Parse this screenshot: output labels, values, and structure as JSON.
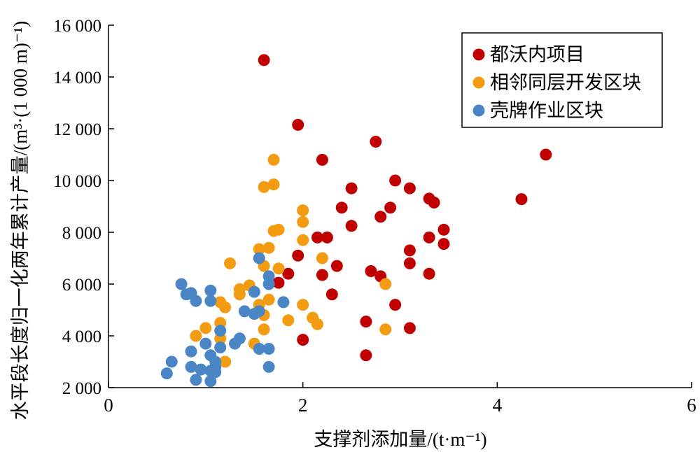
{
  "chart_data": {
    "type": "scatter",
    "xlabel": "支撑剂添加量/(t·m⁻¹)",
    "ylabel": "水平段长度归一化两年累计产量/(m³·(1 000 m)⁻¹)",
    "xlim": [
      0,
      6
    ],
    "ylim": [
      2000,
      16000
    ],
    "x_ticks": [
      "0",
      "2",
      "4",
      "6"
    ],
    "y_ticks": [
      "2 000",
      "4 000",
      "6 000",
      "8 000",
      "10 000",
      "12 000",
      "14 000",
      "16 000"
    ],
    "grid": false,
    "legend_position": "top-right",
    "series": [
      {
        "name": "都沃内项目",
        "color": "#c00000",
        "points": [
          [
            1.6,
            14650
          ],
          [
            1.95,
            12150
          ],
          [
            2.75,
            11500
          ],
          [
            2.2,
            10800
          ],
          [
            4.5,
            11000
          ],
          [
            2.95,
            10000
          ],
          [
            3.1,
            9700
          ],
          [
            2.5,
            9700
          ],
          [
            4.25,
            9280
          ],
          [
            3.3,
            9300
          ],
          [
            3.35,
            9150
          ],
          [
            2.4,
            8950
          ],
          [
            2.9,
            8950
          ],
          [
            2.5,
            8250
          ],
          [
            2.8,
            8600
          ],
          [
            3.45,
            8100
          ],
          [
            2.15,
            7800
          ],
          [
            2.25,
            7800
          ],
          [
            3.3,
            7800
          ],
          [
            3.45,
            7550
          ],
          [
            3.1,
            7300
          ],
          [
            1.95,
            7100
          ],
          [
            3.1,
            6800
          ],
          [
            2.35,
            6700
          ],
          [
            2.7,
            6500
          ],
          [
            2.8,
            6300
          ],
          [
            2.2,
            6350
          ],
          [
            3.3,
            6400
          ],
          [
            1.85,
            6400
          ],
          [
            1.75,
            6050
          ],
          [
            2.3,
            5600
          ],
          [
            2.95,
            5200
          ],
          [
            2.65,
            4550
          ],
          [
            3.1,
            4300
          ],
          [
            2.0,
            3850
          ],
          [
            2.65,
            3250
          ]
        ]
      },
      {
        "name": "相邻同层开发区块",
        "color": "#f39c12",
        "points": [
          [
            1.7,
            10800
          ],
          [
            1.6,
            9750
          ],
          [
            1.7,
            9850
          ],
          [
            2.0,
            8850
          ],
          [
            2.0,
            8400
          ],
          [
            1.7,
            8050
          ],
          [
            1.75,
            8100
          ],
          [
            2.0,
            7700
          ],
          [
            1.55,
            7350
          ],
          [
            1.65,
            7400
          ],
          [
            1.25,
            6800
          ],
          [
            1.6,
            6700
          ],
          [
            2.2,
            7000
          ],
          [
            1.75,
            6600
          ],
          [
            2.85,
            6000
          ],
          [
            1.45,
            5950
          ],
          [
            1.35,
            5800
          ],
          [
            1.35,
            5600
          ],
          [
            1.2,
            5100
          ],
          [
            1.55,
            5200
          ],
          [
            1.65,
            5400
          ],
          [
            2.0,
            5200
          ],
          [
            1.15,
            5300
          ],
          [
            1.6,
            4800
          ],
          [
            1.85,
            4600
          ],
          [
            2.1,
            4700
          ],
          [
            2.15,
            4450
          ],
          [
            1.15,
            4500
          ],
          [
            1.6,
            4250
          ],
          [
            2.85,
            4250
          ],
          [
            1.0,
            4300
          ],
          [
            0.9,
            4000
          ],
          [
            1.15,
            3900
          ],
          [
            1.5,
            3700
          ],
          [
            1.2,
            3000
          ]
        ]
      },
      {
        "name": "壳牌作业区块",
        "color": "#4a86c5",
        "points": [
          [
            1.55,
            7000
          ],
          [
            1.65,
            6300
          ],
          [
            1.65,
            6000
          ],
          [
            0.75,
            6000
          ],
          [
            0.85,
            5650
          ],
          [
            0.8,
            5600
          ],
          [
            1.05,
            5750
          ],
          [
            0.9,
            5350
          ],
          [
            1.05,
            5350
          ],
          [
            1.5,
            5700
          ],
          [
            1.8,
            5300
          ],
          [
            1.4,
            4950
          ],
          [
            1.5,
            4850
          ],
          [
            1.55,
            4950
          ],
          [
            1.15,
            4200
          ],
          [
            1.35,
            3900
          ],
          [
            1.3,
            3700
          ],
          [
            1.0,
            3700
          ],
          [
            1.55,
            3500
          ],
          [
            1.65,
            3500
          ],
          [
            1.15,
            3550
          ],
          [
            0.85,
            3400
          ],
          [
            1.05,
            3250
          ],
          [
            1.1,
            3000
          ],
          [
            1.1,
            2800
          ],
          [
            0.65,
            3000
          ],
          [
            0.85,
            2800
          ],
          [
            1.65,
            2800
          ],
          [
            0.95,
            2700
          ],
          [
            1.1,
            2600
          ],
          [
            1.05,
            2650
          ],
          [
            0.6,
            2550
          ],
          [
            0.9,
            2300
          ],
          [
            1.05,
            2250
          ]
        ]
      }
    ]
  }
}
